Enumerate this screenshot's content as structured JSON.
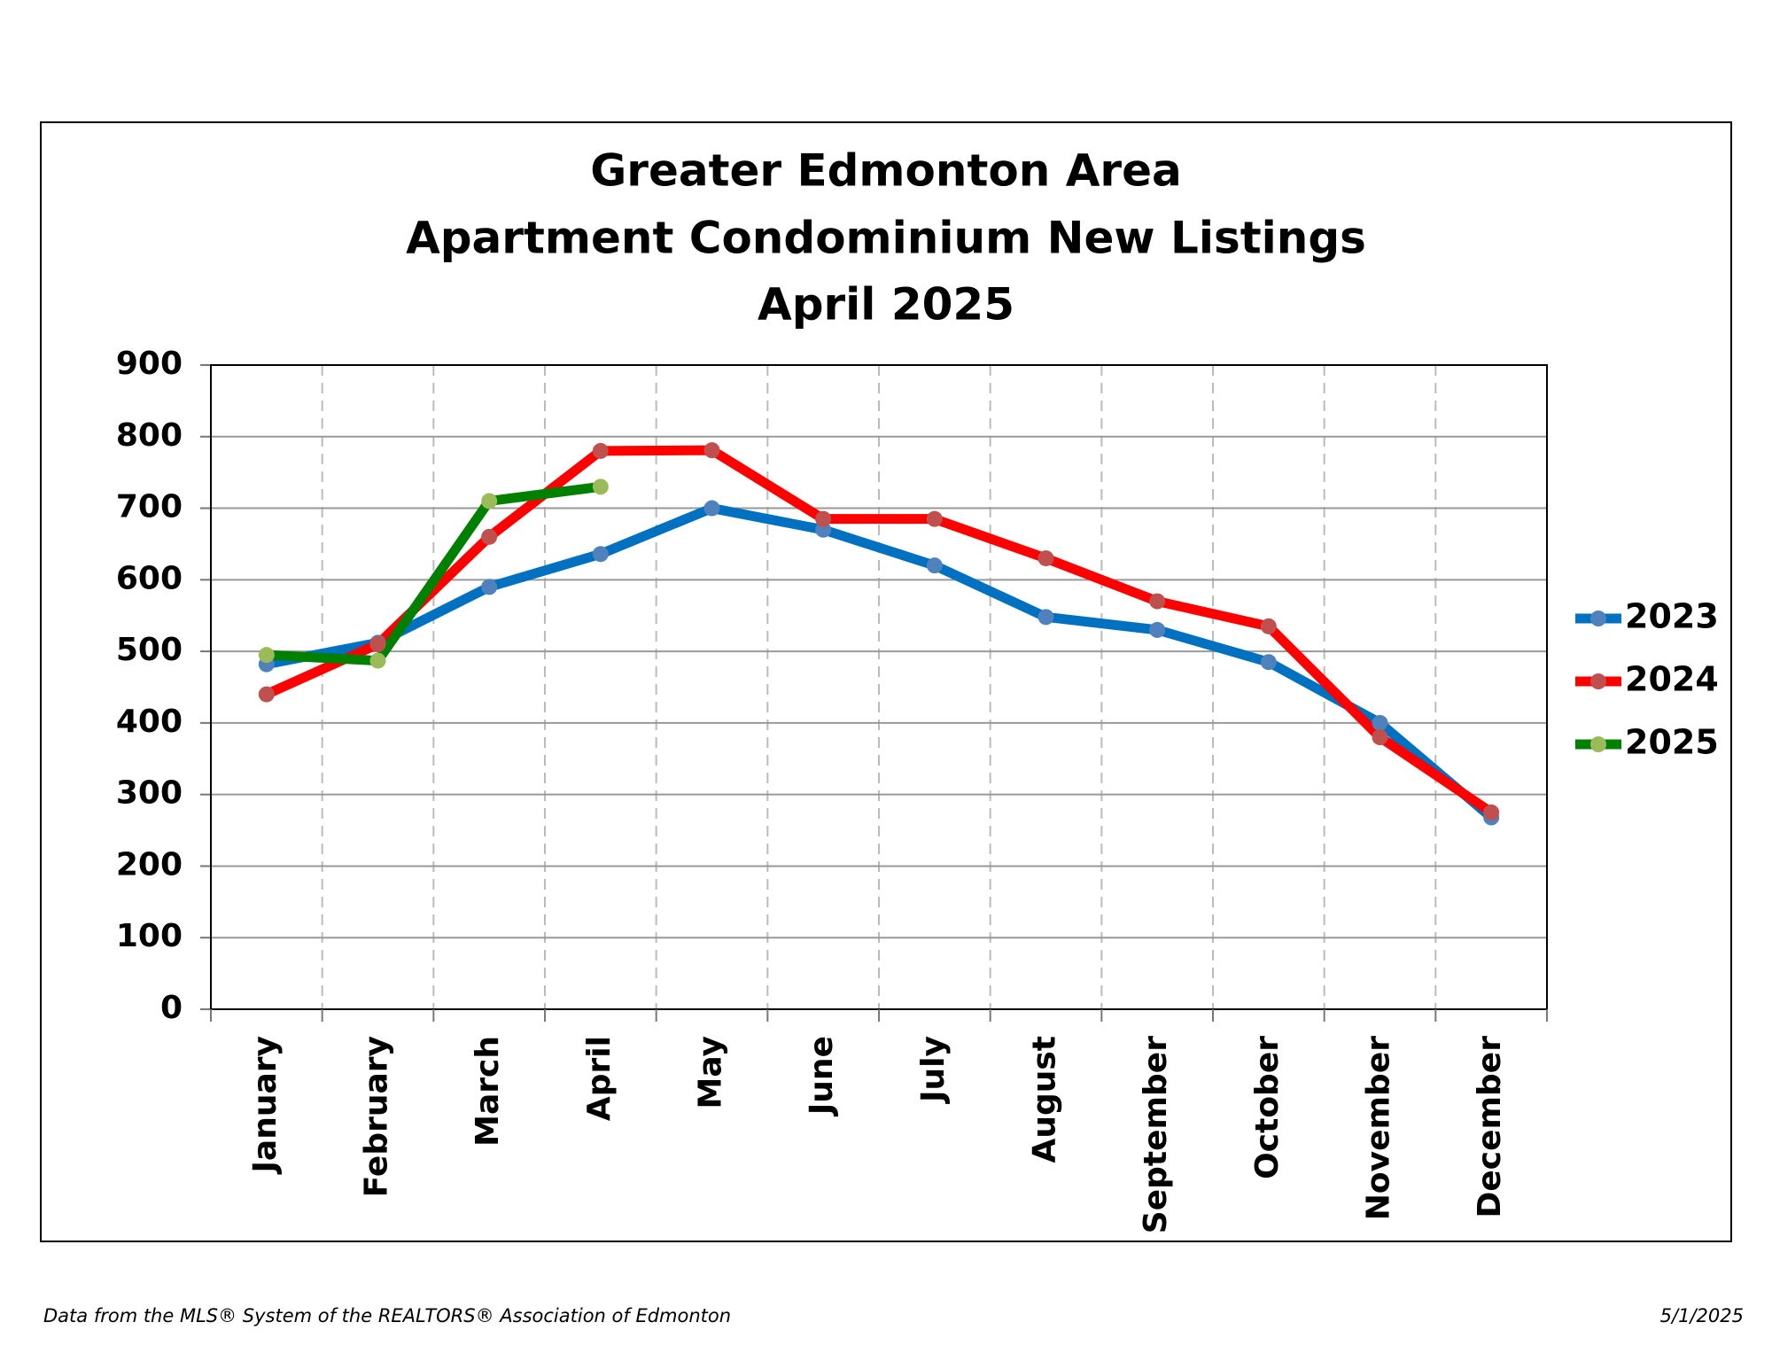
{
  "chart_data": {
    "type": "line",
    "title": [
      "Greater Edmonton Area",
      "Apartment Condominium New Listings",
      "April 2025"
    ],
    "categories": [
      "January",
      "February",
      "March",
      "April",
      "May",
      "June",
      "July",
      "August",
      "September",
      "October",
      "November",
      "December"
    ],
    "series": [
      {
        "name": "2023",
        "color": "#0070c0",
        "marker_color": "#4f81bd",
        "values": [
          482,
          512,
          590,
          636,
          700,
          670,
          620,
          548,
          530,
          485,
          400,
          268
        ]
      },
      {
        "name": "2024",
        "color": "#ff0000",
        "marker_color": "#c0504d",
        "values": [
          440,
          510,
          660,
          780,
          781,
          685,
          685,
          630,
          570,
          535,
          380,
          275
        ]
      },
      {
        "name": "2025",
        "color": "#008000",
        "marker_color": "#9bbb59",
        "values": [
          495,
          487,
          710,
          730,
          null,
          null,
          null,
          null,
          null,
          null,
          null,
          null
        ]
      }
    ],
    "ylim": [
      0,
      900
    ],
    "yticks": [
      0,
      100,
      200,
      300,
      400,
      500,
      600,
      700,
      800,
      900
    ],
    "grid": true,
    "legend": "right",
    "source": "Data from the MLS® System of the REALTORS® Association of Edmonton",
    "date": "5/1/2025"
  }
}
